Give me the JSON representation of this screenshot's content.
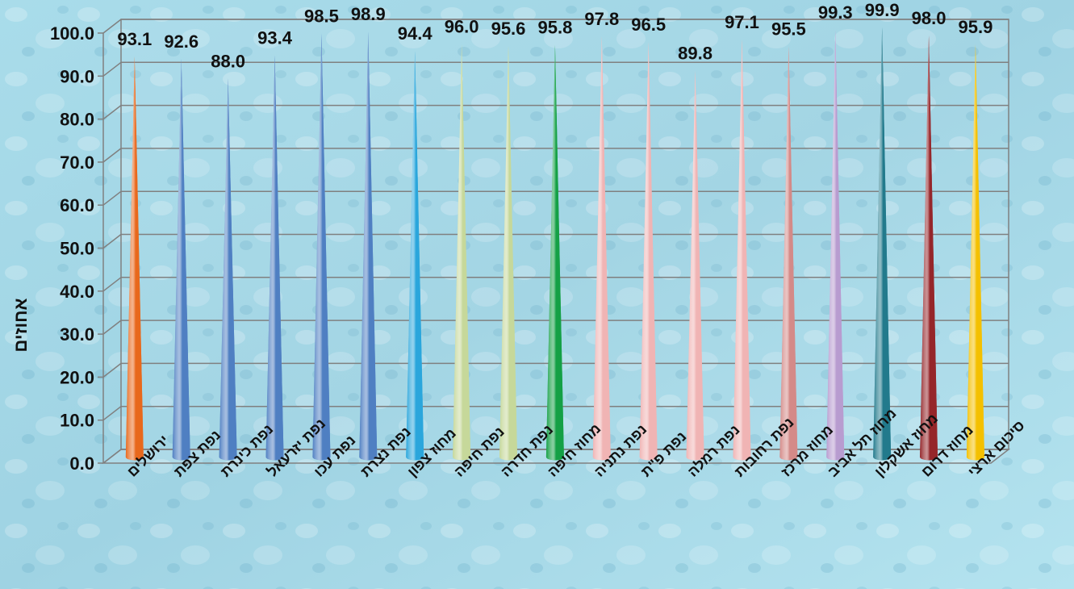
{
  "chart_data": {
    "type": "bar",
    "style": "3d-cone",
    "title": "",
    "xlabel": "",
    "ylabel": "אחוזים",
    "ylim": [
      0,
      100
    ],
    "ytick_step": 10,
    "ytick_labels": [
      "0.0",
      "10.0",
      "20.0",
      "30.0",
      "40.0",
      "50.0",
      "60.0",
      "70.0",
      "80.0",
      "90.0",
      "100.0"
    ],
    "grid": true,
    "legend": "none",
    "categories": [
      "ירושלים",
      "נפת צפת",
      "נפת כינרת",
      "נפת יזרעאל",
      "נפת עכו",
      "נפת נצרת",
      "מחוז צפון",
      "נפת חיפה",
      "נפת חדרה",
      "מחוז חיפה",
      "נפת נתניה",
      "נפת פ\"ת",
      "נפת רמלה",
      "נפת רחובות",
      "מחוז מרכז",
      "מחוז תל אביב",
      "מחוז אשקלון",
      "מחוז דרום",
      "סיכום ארצי"
    ],
    "values": [
      93.1,
      92.6,
      88.0,
      93.4,
      98.5,
      98.9,
      94.4,
      96.0,
      95.6,
      95.8,
      97.8,
      96.5,
      89.8,
      97.1,
      95.5,
      99.3,
      99.9,
      98.0,
      95.9
    ],
    "value_labels": [
      "93.1",
      "92.6",
      "88.0",
      "93.4",
      "98.5",
      "98.9",
      "94.4",
      "96.0",
      "95.6",
      "95.8",
      "97.8",
      "96.5",
      "89.8",
      "97.1",
      "95.5",
      "99.3",
      "99.9",
      "98.0",
      "95.9"
    ],
    "colors": [
      "#e8681c",
      "#4f7fc2",
      "#4f7fc2",
      "#4f7fc2",
      "#4f7fc2",
      "#4f7fc2",
      "#2aa6dc",
      "#c6d89a",
      "#c6d89a",
      "#14a045",
      "#f0b4b4",
      "#f0b4b4",
      "#f0b4b4",
      "#f0b4b4",
      "#d48a88",
      "#b89cd0",
      "#227a8c",
      "#95262a",
      "#f4c000"
    ]
  }
}
